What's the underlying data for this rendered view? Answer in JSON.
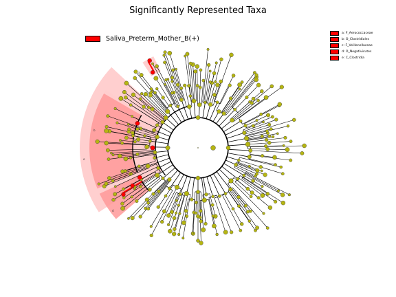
{
  "title": "Significantly Represented Taxa",
  "legend": {
    "label": "Saliva_Preterm_Mother_B(+)",
    "color": "#ff0000"
  },
  "clade_legend": [
    {
      "key": "a",
      "text": "a: F_Aerococcaceae"
    },
    {
      "key": "b",
      "text": "b: O_Clostridiales"
    },
    {
      "key": "c",
      "text": "c: F_Veillonellaceae"
    },
    {
      "key": "d",
      "text": "d: O_Negativicutes"
    },
    {
      "key": "e",
      "text": "e: C_Clostridia"
    }
  ],
  "sector_letters": [
    "e",
    "b",
    "d",
    "a"
  ],
  "colors": {
    "node_default": "#b5b512",
    "node_significant": "#ff0000",
    "highlight_outer": "#ffcccc",
    "highlight_inner": "#ff9999"
  }
}
